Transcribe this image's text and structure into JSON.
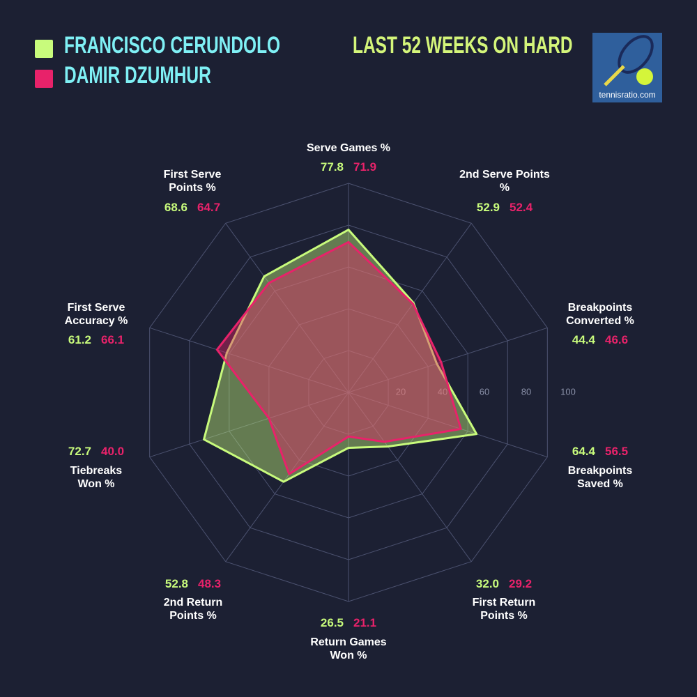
{
  "chart_data": {
    "type": "radar",
    "title": "LAST 52 WEEKS ON HARD",
    "categories": [
      "Serve Games %",
      "2nd Serve Points %",
      "Breakpoints Converted %",
      "Breakpoints Saved %",
      "First Return Points %",
      "Return Games Won %",
      "2nd Return Points %",
      "Tiebreaks Won %",
      "First Serve Accuracy %",
      "First Serve Points %"
    ],
    "series": [
      {
        "name": "FRANCISCO CERUNDOLO",
        "color": "#c8fb7c",
        "values": [
          77.8,
          52.9,
          44.4,
          64.4,
          32.0,
          26.5,
          52.8,
          72.7,
          61.2,
          68.6
        ],
        "value_labels": [
          "77.8",
          "52.9",
          "44.4",
          "64.4",
          "32.0",
          "26.5",
          "52.8",
          "72.7",
          "61.2",
          "68.6"
        ]
      },
      {
        "name": "DAMIR DZUMHUR",
        "color": "#e8226a",
        "values": [
          71.9,
          52.4,
          46.6,
          56.5,
          29.2,
          21.1,
          48.3,
          40.0,
          66.1,
          64.7
        ],
        "value_labels": [
          "71.9",
          "52.4",
          "46.6",
          "56.5",
          "29.2",
          "21.1",
          "48.3",
          "40.0",
          "66.1",
          "64.7"
        ]
      }
    ],
    "rlim": [
      0,
      100
    ],
    "rticks": [
      20,
      40,
      60,
      80,
      100
    ]
  },
  "logo": {
    "text": "tennisratio.com"
  }
}
